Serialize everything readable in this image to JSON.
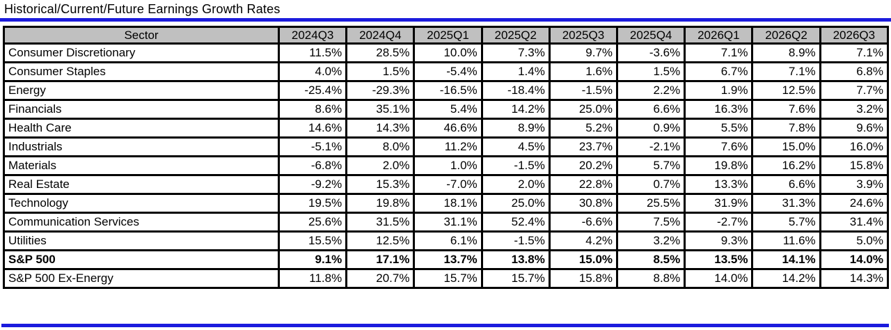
{
  "title": "Historical/Current/Future Earnings Growth Rates",
  "colors": {
    "accent_blue": "#1b1bdd",
    "header_bg": "#c0c0c0",
    "border": "#000000"
  },
  "chart_data": {
    "type": "table",
    "title": "Historical/Current/Future Earnings Growth Rates",
    "columns": [
      "Sector",
      "2024Q3",
      "2024Q4",
      "2025Q1",
      "2025Q2",
      "2025Q3",
      "2025Q4",
      "2026Q1",
      "2026Q2",
      "2026Q3"
    ],
    "rows": [
      {
        "sector": "Consumer Discretionary",
        "bold": false,
        "values": [
          "11.5%",
          "28.5%",
          "10.0%",
          "7.3%",
          "9.7%",
          "-3.6%",
          "7.1%",
          "8.9%",
          "7.1%"
        ]
      },
      {
        "sector": "Consumer Staples",
        "bold": false,
        "values": [
          "4.0%",
          "1.5%",
          "-5.4%",
          "1.4%",
          "1.6%",
          "1.5%",
          "6.7%",
          "7.1%",
          "6.8%"
        ]
      },
      {
        "sector": "Energy",
        "bold": false,
        "values": [
          "-25.4%",
          "-29.3%",
          "-16.5%",
          "-18.4%",
          "-1.5%",
          "2.2%",
          "1.9%",
          "12.5%",
          "7.7%"
        ]
      },
      {
        "sector": "Financials",
        "bold": false,
        "values": [
          "8.6%",
          "35.1%",
          "5.4%",
          "14.2%",
          "25.0%",
          "6.6%",
          "16.3%",
          "7.6%",
          "3.2%"
        ]
      },
      {
        "sector": "Health Care",
        "bold": false,
        "values": [
          "14.6%",
          "14.3%",
          "46.6%",
          "8.9%",
          "5.2%",
          "0.9%",
          "5.5%",
          "7.8%",
          "9.6%"
        ]
      },
      {
        "sector": "Industrials",
        "bold": false,
        "values": [
          "-5.1%",
          "8.0%",
          "11.2%",
          "4.5%",
          "23.7%",
          "-2.1%",
          "7.6%",
          "15.0%",
          "16.0%"
        ]
      },
      {
        "sector": "Materials",
        "bold": false,
        "values": [
          "-6.8%",
          "2.0%",
          "1.0%",
          "-1.5%",
          "20.2%",
          "5.7%",
          "19.8%",
          "16.2%",
          "15.8%"
        ]
      },
      {
        "sector": "Real Estate",
        "bold": false,
        "values": [
          "-9.2%",
          "15.3%",
          "-7.0%",
          "2.0%",
          "22.8%",
          "0.7%",
          "13.3%",
          "6.6%",
          "3.9%"
        ]
      },
      {
        "sector": "Technology",
        "bold": false,
        "values": [
          "19.5%",
          "19.8%",
          "18.1%",
          "25.0%",
          "30.8%",
          "25.5%",
          "31.9%",
          "31.3%",
          "24.6%"
        ]
      },
      {
        "sector": "Communication Services",
        "bold": false,
        "values": [
          "25.6%",
          "31.5%",
          "31.1%",
          "52.4%",
          "-6.6%",
          "7.5%",
          "-2.7%",
          "5.7%",
          "31.4%"
        ]
      },
      {
        "sector": "Utilities",
        "bold": false,
        "values": [
          "15.5%",
          "12.5%",
          "6.1%",
          "-1.5%",
          "4.2%",
          "3.2%",
          "9.3%",
          "11.6%",
          "5.0%"
        ]
      },
      {
        "sector": "S&P 500",
        "bold": true,
        "values": [
          "9.1%",
          "17.1%",
          "13.7%",
          "13.8%",
          "15.0%",
          "8.5%",
          "13.5%",
          "14.1%",
          "14.0%"
        ]
      },
      {
        "sector": "S&P 500 Ex-Energy",
        "bold": false,
        "values": [
          "11.8%",
          "20.7%",
          "15.7%",
          "15.7%",
          "15.8%",
          "8.8%",
          "14.0%",
          "14.2%",
          "14.3%"
        ]
      }
    ]
  }
}
